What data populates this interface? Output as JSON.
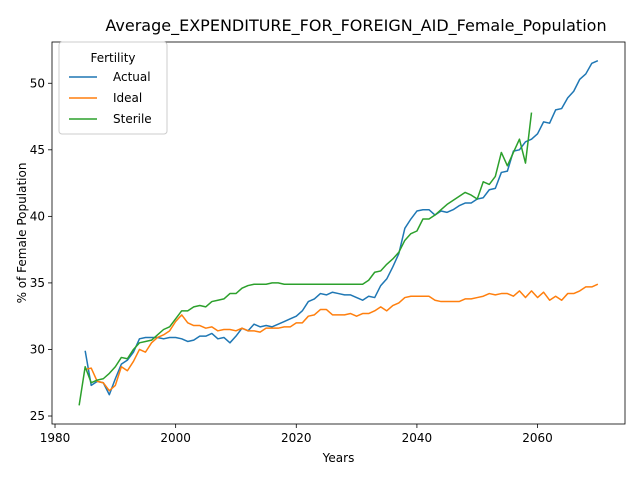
{
  "chart_data": {
    "type": "line",
    "title": "Average_EXPENDITURE_FOR_FOREIGN_AID_Female_Population",
    "xlabel": "Years",
    "ylabel": "% of Female Population",
    "xlim": [
      1979.5,
      2074.5
    ],
    "ylim": [
      24.4,
      53.1
    ],
    "xticks": [
      1980,
      2000,
      2020,
      2040,
      2060
    ],
    "yticks": [
      25,
      30,
      35,
      40,
      45,
      50
    ],
    "grid": false,
    "legend": {
      "title": "Fertility",
      "placement": "top-left"
    },
    "colors": {
      "Actual": "#1f77b4",
      "Ideal": "#ff7f0e",
      "Sterile": "#2ca02c"
    },
    "series": [
      {
        "name": "Actual",
        "x": [
          1985,
          1986,
          1987,
          1988,
          1989,
          1990,
          1991,
          1992,
          1993,
          1994,
          1995,
          1996,
          1997,
          1998,
          1999,
          2000,
          2001,
          2002,
          2003,
          2004,
          2005,
          2006,
          2007,
          2008,
          2009,
          2010,
          2011,
          2012,
          2013,
          2014,
          2015,
          2016,
          2017,
          2018,
          2019,
          2020,
          2021,
          2022,
          2023,
          2024,
          2025,
          2026,
          2027,
          2028,
          2029,
          2030,
          2031,
          2032,
          2033,
          2034,
          2035,
          2036,
          2037,
          2038,
          2039,
          2040,
          2041,
          2042,
          2043,
          2044,
          2045,
          2046,
          2047,
          2048,
          2049,
          2050,
          2051,
          2052,
          2053,
          2054,
          2055,
          2056,
          2057,
          2058,
          2059,
          2060,
          2061,
          2062,
          2063,
          2064,
          2065,
          2066,
          2067,
          2068,
          2069,
          2070
        ],
        "values": [
          29.9,
          27.3,
          27.6,
          27.5,
          26.6,
          27.8,
          28.9,
          29.2,
          29.8,
          30.8,
          30.9,
          30.9,
          30.9,
          30.8,
          30.9,
          30.9,
          30.8,
          30.6,
          30.7,
          31.0,
          31.0,
          31.2,
          30.8,
          30.9,
          30.5,
          31.0,
          31.6,
          31.4,
          31.9,
          31.7,
          31.8,
          31.7,
          31.9,
          32.1,
          32.3,
          32.5,
          32.9,
          33.6,
          33.8,
          34.2,
          34.1,
          34.3,
          34.2,
          34.1,
          34.1,
          33.9,
          33.7,
          34.0,
          33.9,
          34.8,
          35.3,
          36.2,
          37.2,
          39.1,
          39.8,
          40.4,
          40.5,
          40.5,
          40.1,
          40.4,
          40.3,
          40.5,
          40.8,
          41.0,
          41.0,
          41.3,
          41.4,
          42.0,
          42.1,
          43.3,
          43.4,
          44.9,
          45.0,
          45.6,
          45.8,
          46.2,
          47.1,
          47.0,
          48.0,
          48.1,
          48.9,
          49.4,
          50.3,
          50.7,
          51.5,
          51.7
        ]
      },
      {
        "name": "Ideal",
        "x": [
          1985,
          1986,
          1987,
          1988,
          1989,
          1990,
          1991,
          1992,
          1993,
          1994,
          1995,
          1996,
          1997,
          1998,
          1999,
          2000,
          2001,
          2002,
          2003,
          2004,
          2005,
          2006,
          2007,
          2008,
          2009,
          2010,
          2011,
          2012,
          2013,
          2014,
          2015,
          2016,
          2017,
          2018,
          2019,
          2020,
          2021,
          2022,
          2023,
          2024,
          2025,
          2026,
          2027,
          2028,
          2029,
          2030,
          2031,
          2032,
          2033,
          2034,
          2035,
          2036,
          2037,
          2038,
          2039,
          2040,
          2041,
          2042,
          2043,
          2044,
          2045,
          2046,
          2047,
          2048,
          2049,
          2050,
          2051,
          2052,
          2053,
          2054,
          2055,
          2056,
          2057,
          2058,
          2059,
          2060,
          2061,
          2062,
          2063,
          2064,
          2065,
          2066,
          2067,
          2068,
          2069,
          2070
        ],
        "values": [
          28.5,
          28.6,
          27.6,
          27.5,
          26.9,
          27.3,
          28.7,
          28.4,
          29.1,
          30.0,
          29.8,
          30.5,
          30.9,
          31.1,
          31.4,
          32.1,
          32.6,
          32.0,
          31.8,
          31.8,
          31.6,
          31.7,
          31.4,
          31.5,
          31.5,
          31.4,
          31.6,
          31.4,
          31.4,
          31.3,
          31.6,
          31.6,
          31.6,
          31.7,
          31.7,
          32.0,
          32.0,
          32.5,
          32.6,
          33.0,
          33.0,
          32.6,
          32.6,
          32.6,
          32.7,
          32.5,
          32.7,
          32.7,
          32.9,
          33.2,
          32.9,
          33.3,
          33.5,
          33.9,
          34.0,
          34.0,
          34.0,
          34.0,
          33.7,
          33.6,
          33.6,
          33.6,
          33.6,
          33.8,
          33.8,
          33.9,
          34.0,
          34.2,
          34.1,
          34.2,
          34.2,
          34.0,
          34.4,
          33.9,
          34.4,
          33.9,
          34.3,
          33.7,
          34.0,
          33.7,
          34.2,
          34.2,
          34.4,
          34.7,
          34.7,
          34.9
        ]
      },
      {
        "name": "Sterile",
        "x": [
          1984,
          1985,
          1986,
          1987,
          1988,
          1989,
          1990,
          1991,
          1992,
          1993,
          1994,
          1995,
          1996,
          1997,
          1998,
          1999,
          2000,
          2001,
          2002,
          2003,
          2004,
          2005,
          2006,
          2007,
          2008,
          2009,
          2010,
          2011,
          2012,
          2013,
          2014,
          2015,
          2016,
          2017,
          2018,
          2019,
          2020,
          2021,
          2022,
          2023,
          2024,
          2025,
          2026,
          2027,
          2028,
          2029,
          2030,
          2031,
          2032,
          2033,
          2034,
          2035,
          2036,
          2037,
          2038,
          2039,
          2040,
          2041,
          2042,
          2043,
          2044,
          2045,
          2046,
          2047,
          2048,
          2049,
          2050,
          2051,
          2052,
          2053,
          2054,
          2055,
          2056,
          2057,
          2058,
          2059
        ],
        "values": [
          25.8,
          28.7,
          27.5,
          27.7,
          27.8,
          28.2,
          28.7,
          29.4,
          29.3,
          30.0,
          30.5,
          30.6,
          30.7,
          31.1,
          31.5,
          31.7,
          32.3,
          32.9,
          32.9,
          33.2,
          33.3,
          33.2,
          33.6,
          33.7,
          33.8,
          34.2,
          34.2,
          34.6,
          34.8,
          34.9,
          34.9,
          34.9,
          35.0,
          35.0,
          34.9,
          34.9,
          34.9,
          34.9,
          34.9,
          34.9,
          34.9,
          34.9,
          34.9,
          34.9,
          34.9,
          34.9,
          34.9,
          34.9,
          35.2,
          35.8,
          35.9,
          36.4,
          36.8,
          37.3,
          38.2,
          38.7,
          38.9,
          39.8,
          39.8,
          40.1,
          40.5,
          40.9,
          41.2,
          41.5,
          41.8,
          41.6,
          41.3,
          42.6,
          42.4,
          43.0,
          44.8,
          43.8,
          44.8,
          45.8,
          44.0,
          47.8
        ]
      }
    ]
  }
}
